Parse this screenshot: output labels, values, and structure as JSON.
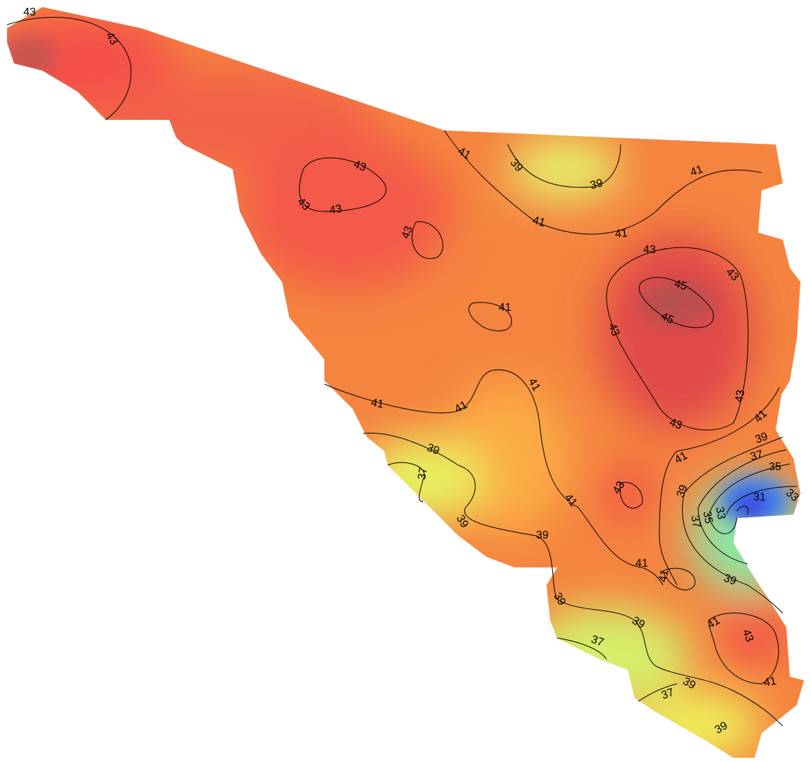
{
  "map": {
    "contour_labels": [
      43,
      43,
      41,
      39,
      39,
      41,
      43,
      43,
      43,
      43,
      41,
      41,
      43,
      43,
      45,
      45,
      41,
      43,
      41,
      41,
      41,
      43,
      43,
      41,
      39,
      37,
      39,
      37,
      41,
      35,
      43,
      39,
      31,
      33,
      41,
      33,
      35,
      37,
      39,
      39,
      41,
      41,
      39,
      39,
      39,
      41,
      43,
      37,
      41,
      39,
      37,
      39
    ]
  }
}
